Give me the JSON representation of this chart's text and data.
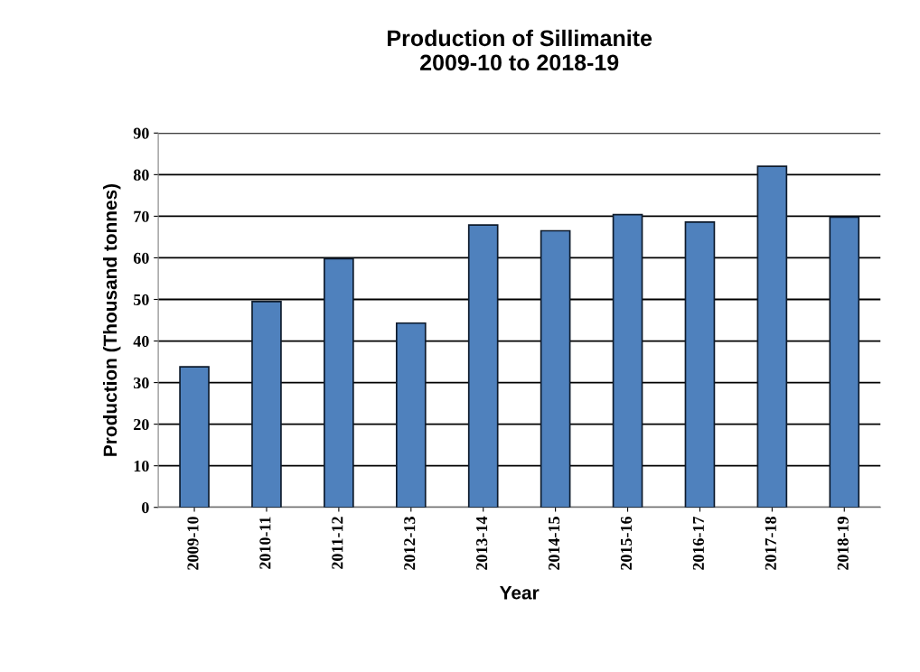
{
  "chart_data": {
    "type": "bar",
    "title": "Production of Sillimanite\n2009-10 to 2018-19",
    "xlabel": "Year",
    "ylabel": "Production (Thousand tonnes)",
    "categories": [
      "2009-10",
      "2010-11",
      "2011-12",
      "2012-13",
      "2013-14",
      "2014-15",
      "2015-16",
      "2016-17",
      "2017-18",
      "2018-19"
    ],
    "values": [
      33.8,
      49.5,
      59.8,
      44.3,
      67.9,
      66.5,
      70.4,
      68.6,
      82.0,
      69.8
    ],
    "color": "#4f81bd",
    "ylim": [
      0,
      90
    ],
    "yticks": [
      0,
      10,
      20,
      30,
      40,
      50,
      60,
      70,
      80,
      90
    ],
    "grid": "y",
    "legend": false
  }
}
